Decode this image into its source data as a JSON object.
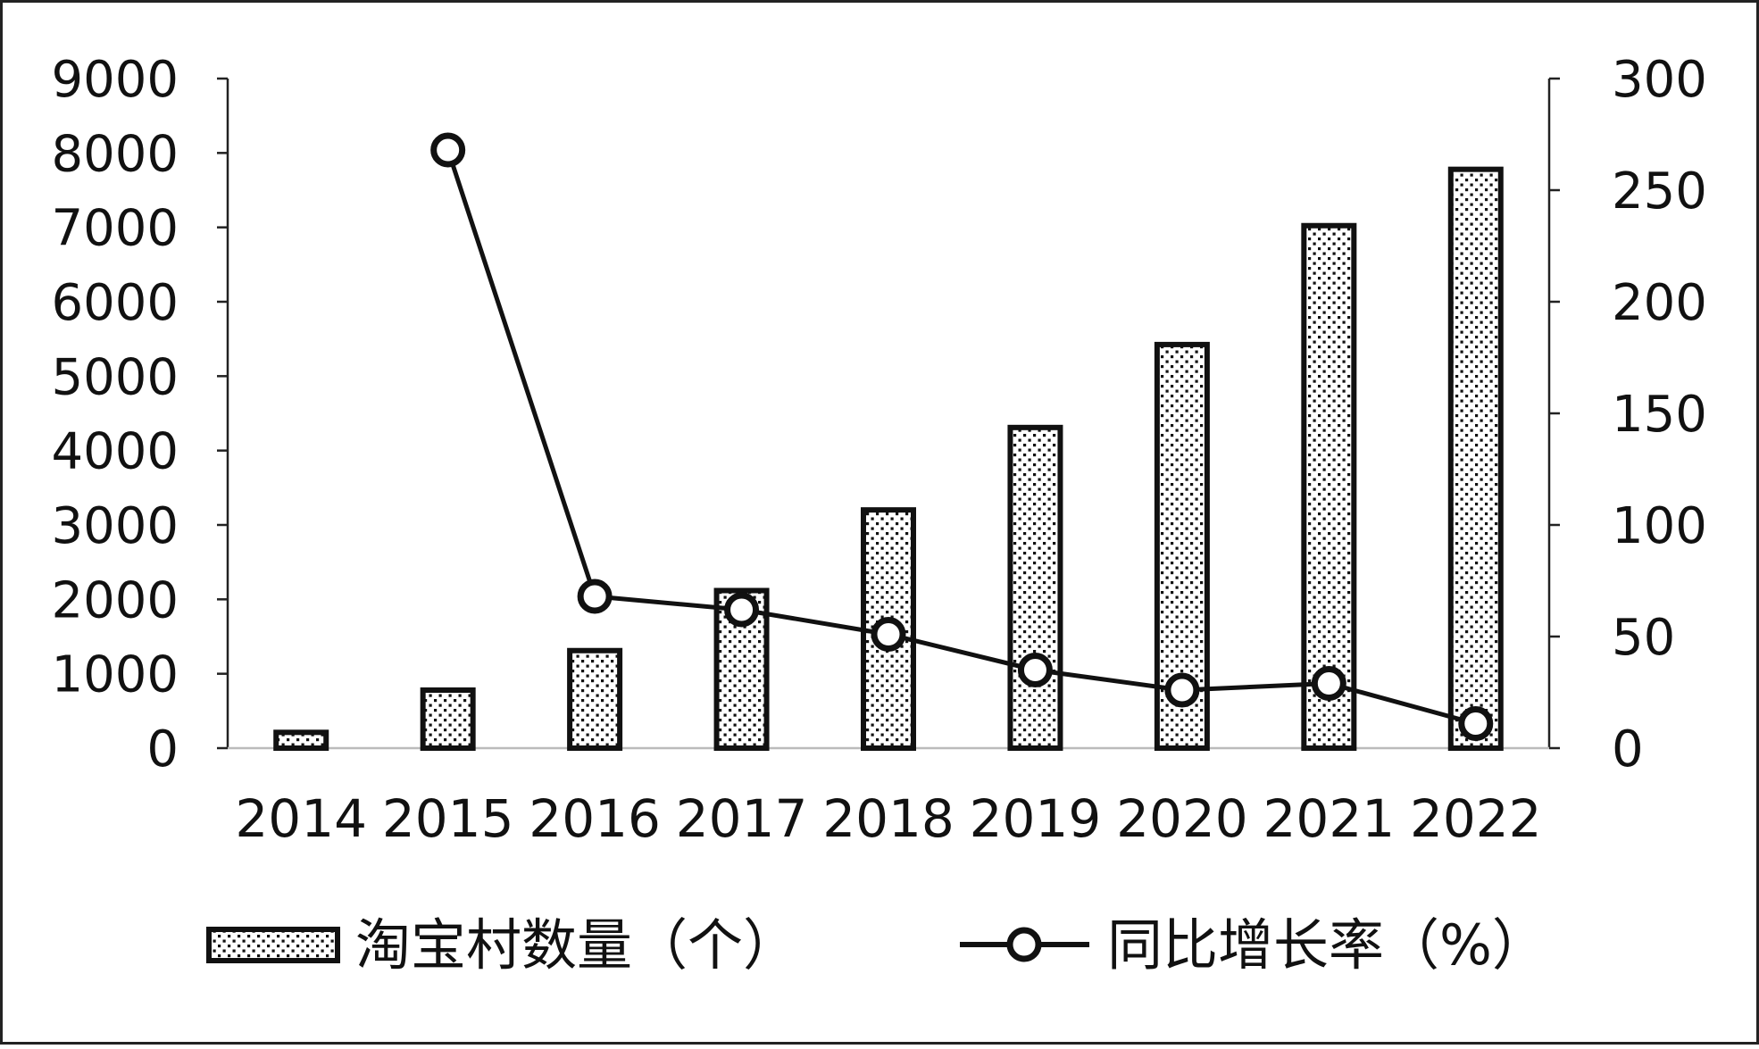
{
  "chart_data": {
    "type": "bar",
    "categories": [
      "2014",
      "2015",
      "2016",
      "2017",
      "2018",
      "2019",
      "2020",
      "2021",
      "2022"
    ],
    "series": [
      {
        "name": "淘宝村数量（个）",
        "type": "bar",
        "axis": "left",
        "values": [
          212,
          780,
          1311,
          2118,
          3202,
          4310,
          5425,
          7023,
          7780
        ]
      },
      {
        "name": "同比增长率（%）",
        "type": "line",
        "axis": "right",
        "values": [
          null,
          268,
          68,
          62,
          51,
          35,
          26,
          29,
          11
        ]
      }
    ],
    "y_left": {
      "ylim": [
        0,
        9000
      ],
      "ticks": [
        "0",
        "1000",
        "2000",
        "3000",
        "4000",
        "5000",
        "6000",
        "7000",
        "8000",
        "9000"
      ]
    },
    "y_right": {
      "ylim": [
        0,
        300
      ],
      "ticks": [
        "0",
        "50",
        "100",
        "150",
        "200",
        "250",
        "300"
      ]
    },
    "legend": "bottom",
    "grid": false
  }
}
